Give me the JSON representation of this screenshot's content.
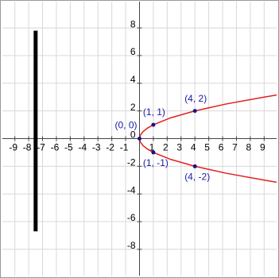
{
  "chart_data": {
    "type": "function-plot",
    "xlim": [
      -9.9,
      9.9
    ],
    "ylim": [
      -9.9,
      9.9
    ],
    "xticks": [
      -9,
      -8,
      -7,
      -6,
      -5,
      -4,
      -3,
      -2,
      -1,
      1,
      2,
      3,
      4,
      5,
      6,
      7,
      8,
      9
    ],
    "yticks": [
      -8,
      -6,
      -4,
      -2,
      0,
      2,
      4,
      6,
      8
    ],
    "grid": true,
    "series": [
      {
        "kind": "curve",
        "color": "#e32020",
        "x": [
          0,
          0.0625,
          0.25,
          0.5625,
          1,
          2.25,
          4,
          6.25,
          9,
          9.9
        ],
        "y": [
          0,
          0.25,
          0.5,
          0.75,
          1,
          1.5,
          2,
          2.5,
          3,
          3.15
        ]
      },
      {
        "kind": "curve",
        "color": "#e32020",
        "x": [
          0,
          0.0625,
          0.25,
          0.5625,
          1,
          2.25,
          4,
          6.25,
          9,
          9.9
        ],
        "y": [
          0,
          -0.25,
          -0.5,
          -0.75,
          -1,
          -1.5,
          -2,
          -2.5,
          -3,
          -3.15
        ]
      },
      {
        "kind": "segment",
        "color": "#000000",
        "x": [
          -7.5,
          -7.5
        ],
        "y": [
          -6.7,
          7.8
        ]
      },
      {
        "kind": "points",
        "color": "#14148c",
        "x": [
          0,
          1,
          4,
          1,
          4
        ],
        "y": [
          0,
          1,
          2,
          -1,
          -2
        ],
        "value_labels": [
          "(0, 0)",
          "(1, 1)",
          "(4, 2)",
          "(1, -1)",
          "(4, -2)"
        ]
      }
    ]
  }
}
